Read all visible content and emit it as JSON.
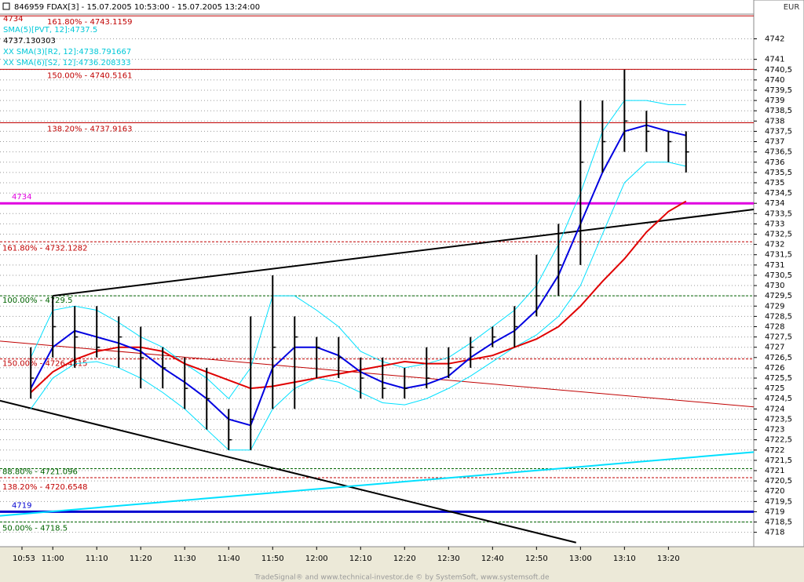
{
  "chart_data": {
    "type": "bars",
    "title": "846959  FDAX[3] - 15.07.2005 10:53:00 - 15.07.2005 13:24:00",
    "currency": "EUR",
    "footer": "TradeSignal® and www.technical-investor.de © by SystemSoft, www.systemsoft.de",
    "legend": [
      {
        "text": "4734",
        "color": "#c00000"
      },
      {
        "text": "SMA(5)[PVT, 12]:4737.5",
        "color": "#00c8d8"
      },
      {
        "text": "4737.130303",
        "color": "#000000"
      },
      {
        "text": "XX SMA(3)[R2, 12]:4738.791667",
        "color": "#00c8d8"
      },
      {
        "text": "XX SMA(6)[S2, 12]:4736.208333",
        "color": "#00c8d8"
      }
    ],
    "xlim": [
      648,
      819.4
    ],
    "xticks": [
      {
        "value": 653,
        "label": "10:53"
      },
      {
        "value": 660,
        "label": "11:00"
      },
      {
        "value": 670,
        "label": "11:10"
      },
      {
        "value": 680,
        "label": "11:20"
      },
      {
        "value": 690,
        "label": "11:30"
      },
      {
        "value": 700,
        "label": "11:40"
      },
      {
        "value": 710,
        "label": "11:50"
      },
      {
        "value": 720,
        "label": "12:00"
      },
      {
        "value": 730,
        "label": "12:10"
      },
      {
        "value": 740,
        "label": "12:20"
      },
      {
        "value": 750,
        "label": "12:30"
      },
      {
        "value": 760,
        "label": "12:40"
      },
      {
        "value": 770,
        "label": "12:50"
      },
      {
        "value": 780,
        "label": "13:00"
      },
      {
        "value": 790,
        "label": "13:10"
      },
      {
        "value": 800,
        "label": "13:20"
      }
    ],
    "ylim": [
      4717.3,
      4743.2
    ],
    "yticks": [
      4718,
      {
        "value": 4718.5,
        "label": "4718,5"
      },
      4719,
      {
        "value": 4719.5,
        "label": "4719,5"
      },
      4720,
      {
        "value": 4720.5,
        "label": "4720,5"
      },
      4721,
      {
        "value": 4721.5,
        "label": "4721,5"
      },
      4722,
      {
        "value": 4722.5,
        "label": "4722,5"
      },
      4723,
      {
        "value": 4723.5,
        "label": "4723,5"
      },
      4724,
      {
        "value": 4724.5,
        "label": "4724,5"
      },
      4725,
      {
        "value": 4725.5,
        "label": "4725,5"
      },
      4726,
      {
        "value": 4726.5,
        "label": "4726,5"
      },
      4727,
      {
        "value": 4727.5,
        "label": "4727,5"
      },
      4728,
      {
        "value": 4728.5,
        "label": "4728,5"
      },
      4729,
      {
        "value": 4729.5,
        "label": "4729,5"
      },
      4730,
      {
        "value": 4730.5,
        "label": "4730,5"
      },
      4731,
      {
        "value": 4731.5,
        "label": "4731,5"
      },
      4732,
      {
        "value": 4732.5,
        "label": "4732,5"
      },
      4733,
      {
        "value": 4733.5,
        "label": "4733,5"
      },
      4734,
      {
        "value": 4734.5,
        "label": "4734,5"
      },
      4735,
      {
        "value": 4735.5,
        "label": "4735,5"
      },
      4736,
      {
        "value": 4736.5,
        "label": "4736,5"
      },
      4737,
      {
        "value": 4737.5,
        "label": "4737,5"
      },
      4738,
      {
        "value": 4738.5,
        "label": "4738,5"
      },
      4739,
      {
        "value": 4739.5,
        "label": "4739,5"
      },
      4740,
      {
        "value": 4740.5,
        "label": "4740,5"
      },
      4741,
      4742
    ],
    "grid": true,
    "bars": {
      "color": "#000000",
      "x": [
        655,
        660,
        665,
        670,
        675,
        680,
        685,
        690,
        695,
        700,
        705,
        710,
        715,
        720,
        725,
        730,
        735,
        740,
        745,
        750,
        755,
        760,
        765,
        770,
        775,
        780,
        785,
        790,
        795,
        800,
        804
      ],
      "high": [
        4727,
        4729.5,
        4729,
        4729,
        4728.5,
        4728,
        4727,
        4726.5,
        4726,
        4724,
        4728.5,
        4730.5,
        4728.5,
        4727.5,
        4727.5,
        4726.5,
        4726.5,
        4726,
        4727,
        4727,
        4727.5,
        4728,
        4729,
        4731.5,
        4733,
        4739,
        4739,
        4740.5,
        4738.5,
        4737.5,
        4737.5
      ],
      "low": [
        4724.5,
        4726.5,
        4726,
        4726.5,
        4726,
        4725,
        4725,
        4724,
        4723,
        4722,
        4722,
        4724,
        4724,
        4725.5,
        4725.5,
        4724.5,
        4724.5,
        4724.5,
        4725,
        4725.5,
        4726,
        4727,
        4727,
        4728.5,
        4729.5,
        4731,
        4735.5,
        4736.5,
        4736.5,
        4736,
        4735.5
      ],
      "close": [
        4725.5,
        4728,
        4727.5,
        4727,
        4727.5,
        4726.5,
        4726,
        4725,
        4724.5,
        4722.5,
        4723.5,
        4727,
        4727.5,
        4727,
        4726.5,
        4725.5,
        4725,
        4725,
        4725.5,
        4726,
        4727,
        4727.5,
        4728,
        4729.5,
        4731,
        4736,
        4737,
        4738,
        4737.5,
        4737,
        4736.5
      ]
    },
    "series": [
      {
        "color": "#00e0ff",
        "width": 1,
        "values": [
          4726.5,
          4728.8,
          4729,
          4728.8,
          4728.2,
          4727.5,
          4727,
          4726.2,
          4725.5,
          4724.5,
          4726,
          4729.5,
          4729.5,
          4728.8,
          4728,
          4726.8,
          4726.3,
          4726,
          4726.2,
          4726.5,
          4727.2,
          4728,
          4728.8,
          4730,
          4732,
          4734.5,
          4737.5,
          4739,
          4739,
          4738.8,
          4738.8
        ]
      },
      {
        "color": "#00e0ff",
        "width": 1,
        "values": [
          4724,
          4725.5,
          4726.2,
          4726.3,
          4726,
          4725.5,
          4724.8,
          4724,
          4723,
          4722,
          4722,
          4724,
          4725,
          4725.5,
          4725.3,
          4724.8,
          4724.3,
          4724.2,
          4724.5,
          4725,
          4725.6,
          4726.3,
          4727,
          4727.6,
          4728.5,
          4730,
          4732.5,
          4735,
          4736,
          4736,
          4735.8
        ]
      },
      {
        "color": "#e00000",
        "width": 2,
        "values": [
          4724.8,
          4725.8,
          4726.4,
          4726.8,
          4727,
          4727,
          4726.8,
          4726.2,
          4725.8,
          4725.4,
          4725,
          4725.1,
          4725.3,
          4725.5,
          4725.7,
          4725.9,
          4726.1,
          4726.3,
          4726.2,
          4726.2,
          4726.4,
          4726.6,
          4727,
          4727.4,
          4728,
          4729,
          4730.2,
          4731.3,
          4732.6,
          4733.6,
          4734.1
        ]
      },
      {
        "color": "#0000e0",
        "width": 2,
        "values": [
          4725,
          4727,
          4727.8,
          4727.5,
          4727.2,
          4726.8,
          4726,
          4725.3,
          4724.5,
          4723.5,
          4723.2,
          4726,
          4727,
          4727,
          4726.6,
          4725.8,
          4725.3,
          4725,
          4725.2,
          4725.6,
          4726.5,
          4727.2,
          4727.8,
          4728.8,
          4730.5,
          4733,
          4735.5,
          4737.5,
          4737.8,
          4737.5,
          4737.3
        ]
      }
    ],
    "trendlines": [
      {
        "color": "#000000",
        "width": 2,
        "x": [
          660,
          819.4
        ],
        "values": [
          4729.5,
          4733.7
        ]
      },
      {
        "color": "#000000",
        "width": 2,
        "x": [
          648,
          779
        ],
        "values": [
          4724.4,
          4717.5
        ]
      },
      {
        "color": "#c00000",
        "width": 1,
        "x": [
          648,
          819.4
        ],
        "values": [
          4727.3,
          4724.1
        ]
      },
      {
        "color": "#00e0ff",
        "width": 2,
        "x": [
          648,
          819.4
        ],
        "values": [
          4718.8,
          4721.9
        ]
      }
    ],
    "levels": [
      {
        "value": 4743.1159,
        "label": "161.80% - 4743.1159",
        "color": "#c00000",
        "style": "solid",
        "width": 1
      },
      {
        "value": 4740.5161,
        "label": "150.00% - 4740.5161",
        "color": "#c00000",
        "style": "solid",
        "width": 1
      },
      {
        "value": 4737.9163,
        "label": "138.20% - 4737.9163",
        "color": "#c00000",
        "style": "solid",
        "width": 1
      },
      {
        "value": 4734,
        "label": "4734",
        "color": "#e000e0",
        "style": "solid",
        "width": 3
      },
      {
        "value": 4732.1282,
        "label": "161.80% - 4732.1282",
        "color": "#c00000",
        "style": "dotted",
        "width": 1
      },
      {
        "value": 4729.5,
        "label": "100.00% - 4729.5",
        "color": "#006400",
        "style": "dotted",
        "width": 1
      },
      {
        "value": 4726.4315,
        "label": "150.00% - 4726.4315",
        "color": "#c00000",
        "style": "dotted",
        "width": 1
      },
      {
        "value": 4721.096,
        "label": "88.80% - 4721.096",
        "color": "#006400",
        "style": "dotted",
        "width": 1
      },
      {
        "value": 4720.6548,
        "label": "138.20% - 4720.6548",
        "color": "#c00000",
        "style": "dotted",
        "width": 1
      },
      {
        "value": 4719,
        "label": "4719",
        "color": "#0000d0",
        "style": "solid",
        "width": 3
      },
      {
        "value": 4718.5,
        "label": "50.00% - 4718.5",
        "color": "#006400",
        "style": "dotted",
        "width": 1
      }
    ]
  }
}
